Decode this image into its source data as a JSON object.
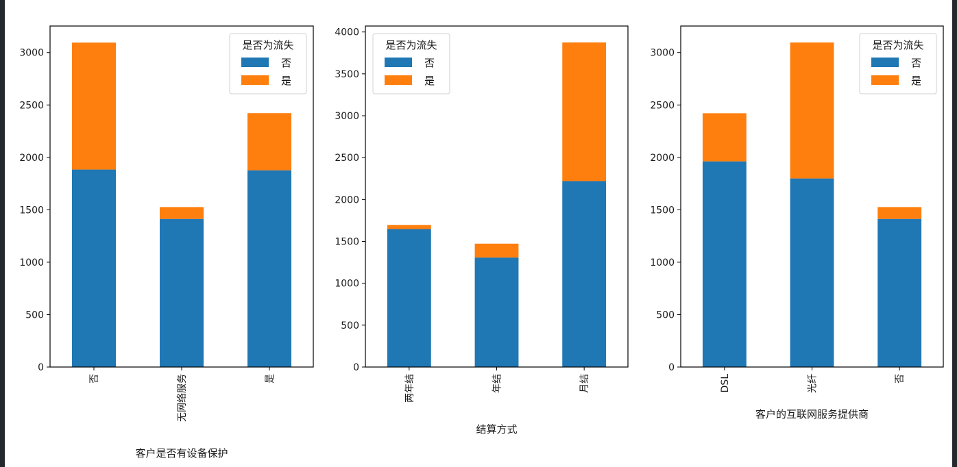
{
  "colors": {
    "no_churn": "#1f77b4",
    "churn": "#ff7f0e",
    "axis": "#000000",
    "legend_border": "#d0d0d0",
    "edge": "#24292e"
  },
  "chart_data": [
    {
      "type": "bar",
      "stacked": true,
      "title": "",
      "xlabel": "客户是否有设备保护",
      "ylabel": "",
      "categories": [
        "否",
        "无网络服务",
        "是"
      ],
      "series": [
        {
          "name": "否",
          "values": [
            1884,
            1413,
            1877
          ]
        },
        {
          "name": "是",
          "values": [
            1211,
            113,
            545
          ]
        }
      ],
      "yticks": [
        0,
        500,
        1000,
        1500,
        2000,
        2500,
        3000
      ],
      "ylim": [
        0,
        3253
      ],
      "legend": {
        "title": "是否为流失",
        "position": "upper right",
        "entries": [
          "否",
          "是"
        ]
      },
      "grid": false
    },
    {
      "type": "bar",
      "stacked": true,
      "title": "",
      "xlabel": "结算方式",
      "ylabel": "",
      "categories": [
        "两年结",
        "年结",
        "月结"
      ],
      "series": [
        {
          "name": "否",
          "values": [
            1647,
            1307,
            2220
          ]
        },
        {
          "name": "是",
          "values": [
            48,
            166,
            1655
          ]
        }
      ],
      "yticks": [
        0,
        500,
        1000,
        1500,
        2000,
        2500,
        3000,
        3500,
        4000
      ],
      "ylim": [
        0,
        4071
      ],
      "legend": {
        "title": "是否为流失",
        "position": "upper left",
        "entries": [
          "否",
          "是"
        ]
      },
      "grid": false
    },
    {
      "type": "bar",
      "stacked": true,
      "title": "",
      "xlabel": "客户的互联网服务提供商",
      "ylabel": "",
      "categories": [
        "DSL",
        "光纤",
        "否"
      ],
      "series": [
        {
          "name": "否",
          "values": [
            1962,
            1799,
            1413
          ]
        },
        {
          "name": "是",
          "values": [
            459,
            1297,
            113
          ]
        }
      ],
      "yticks": [
        0,
        500,
        1000,
        1500,
        2000,
        2500,
        3000
      ],
      "ylim": [
        0,
        3253
      ],
      "legend": {
        "title": "是否为流失",
        "position": "upper right",
        "entries": [
          "否",
          "是"
        ]
      },
      "grid": false
    }
  ]
}
